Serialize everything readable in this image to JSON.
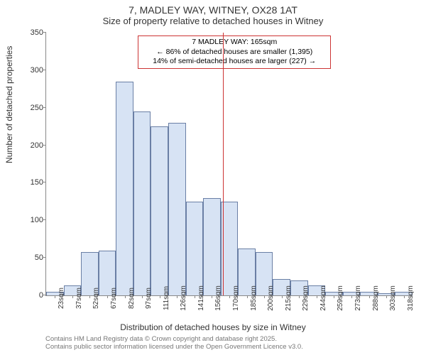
{
  "title_line1": "7, MADLEY WAY, WITNEY, OX28 1AT",
  "title_line2": "Size of property relative to detached houses in Witney",
  "yaxis_label": "Number of detached properties",
  "xaxis_label": "Distribution of detached houses by size in Witney",
  "chart": {
    "type": "histogram",
    "ylim": [
      0,
      350
    ],
    "ytick_step": 50,
    "bar_color": "#d7e3f4",
    "bar_border": "#6a7fa5",
    "x_categories": [
      "23sqm",
      "37sqm",
      "52sqm",
      "67sqm",
      "82sqm",
      "97sqm",
      "111sqm",
      "126sqm",
      "141sqm",
      "156sqm",
      "170sqm",
      "185sqm",
      "200sqm",
      "215sqm",
      "229sqm",
      "244sqm",
      "259sqm",
      "273sqm",
      "288sqm",
      "303sqm",
      "318sqm"
    ],
    "values": [
      5,
      13,
      58,
      60,
      285,
      245,
      225,
      230,
      125,
      130,
      125,
      62,
      58,
      22,
      20,
      13,
      5,
      5,
      5,
      3,
      5
    ],
    "marker_x": "165sqm",
    "marker_color": "#cc3333"
  },
  "annotation": {
    "line1": "7 MADLEY WAY: 165sqm",
    "line2": "← 86% of detached houses are smaller (1,395)",
    "line3": "14% of semi-detached houses are larger (227) →",
    "border_color": "#cc3333"
  },
  "footer_line1": "Contains HM Land Registry data © Crown copyright and database right 2025.",
  "footer_line2": "Contains public sector information licensed under the Open Government Licence v3.0.",
  "footer_color": "#777777"
}
